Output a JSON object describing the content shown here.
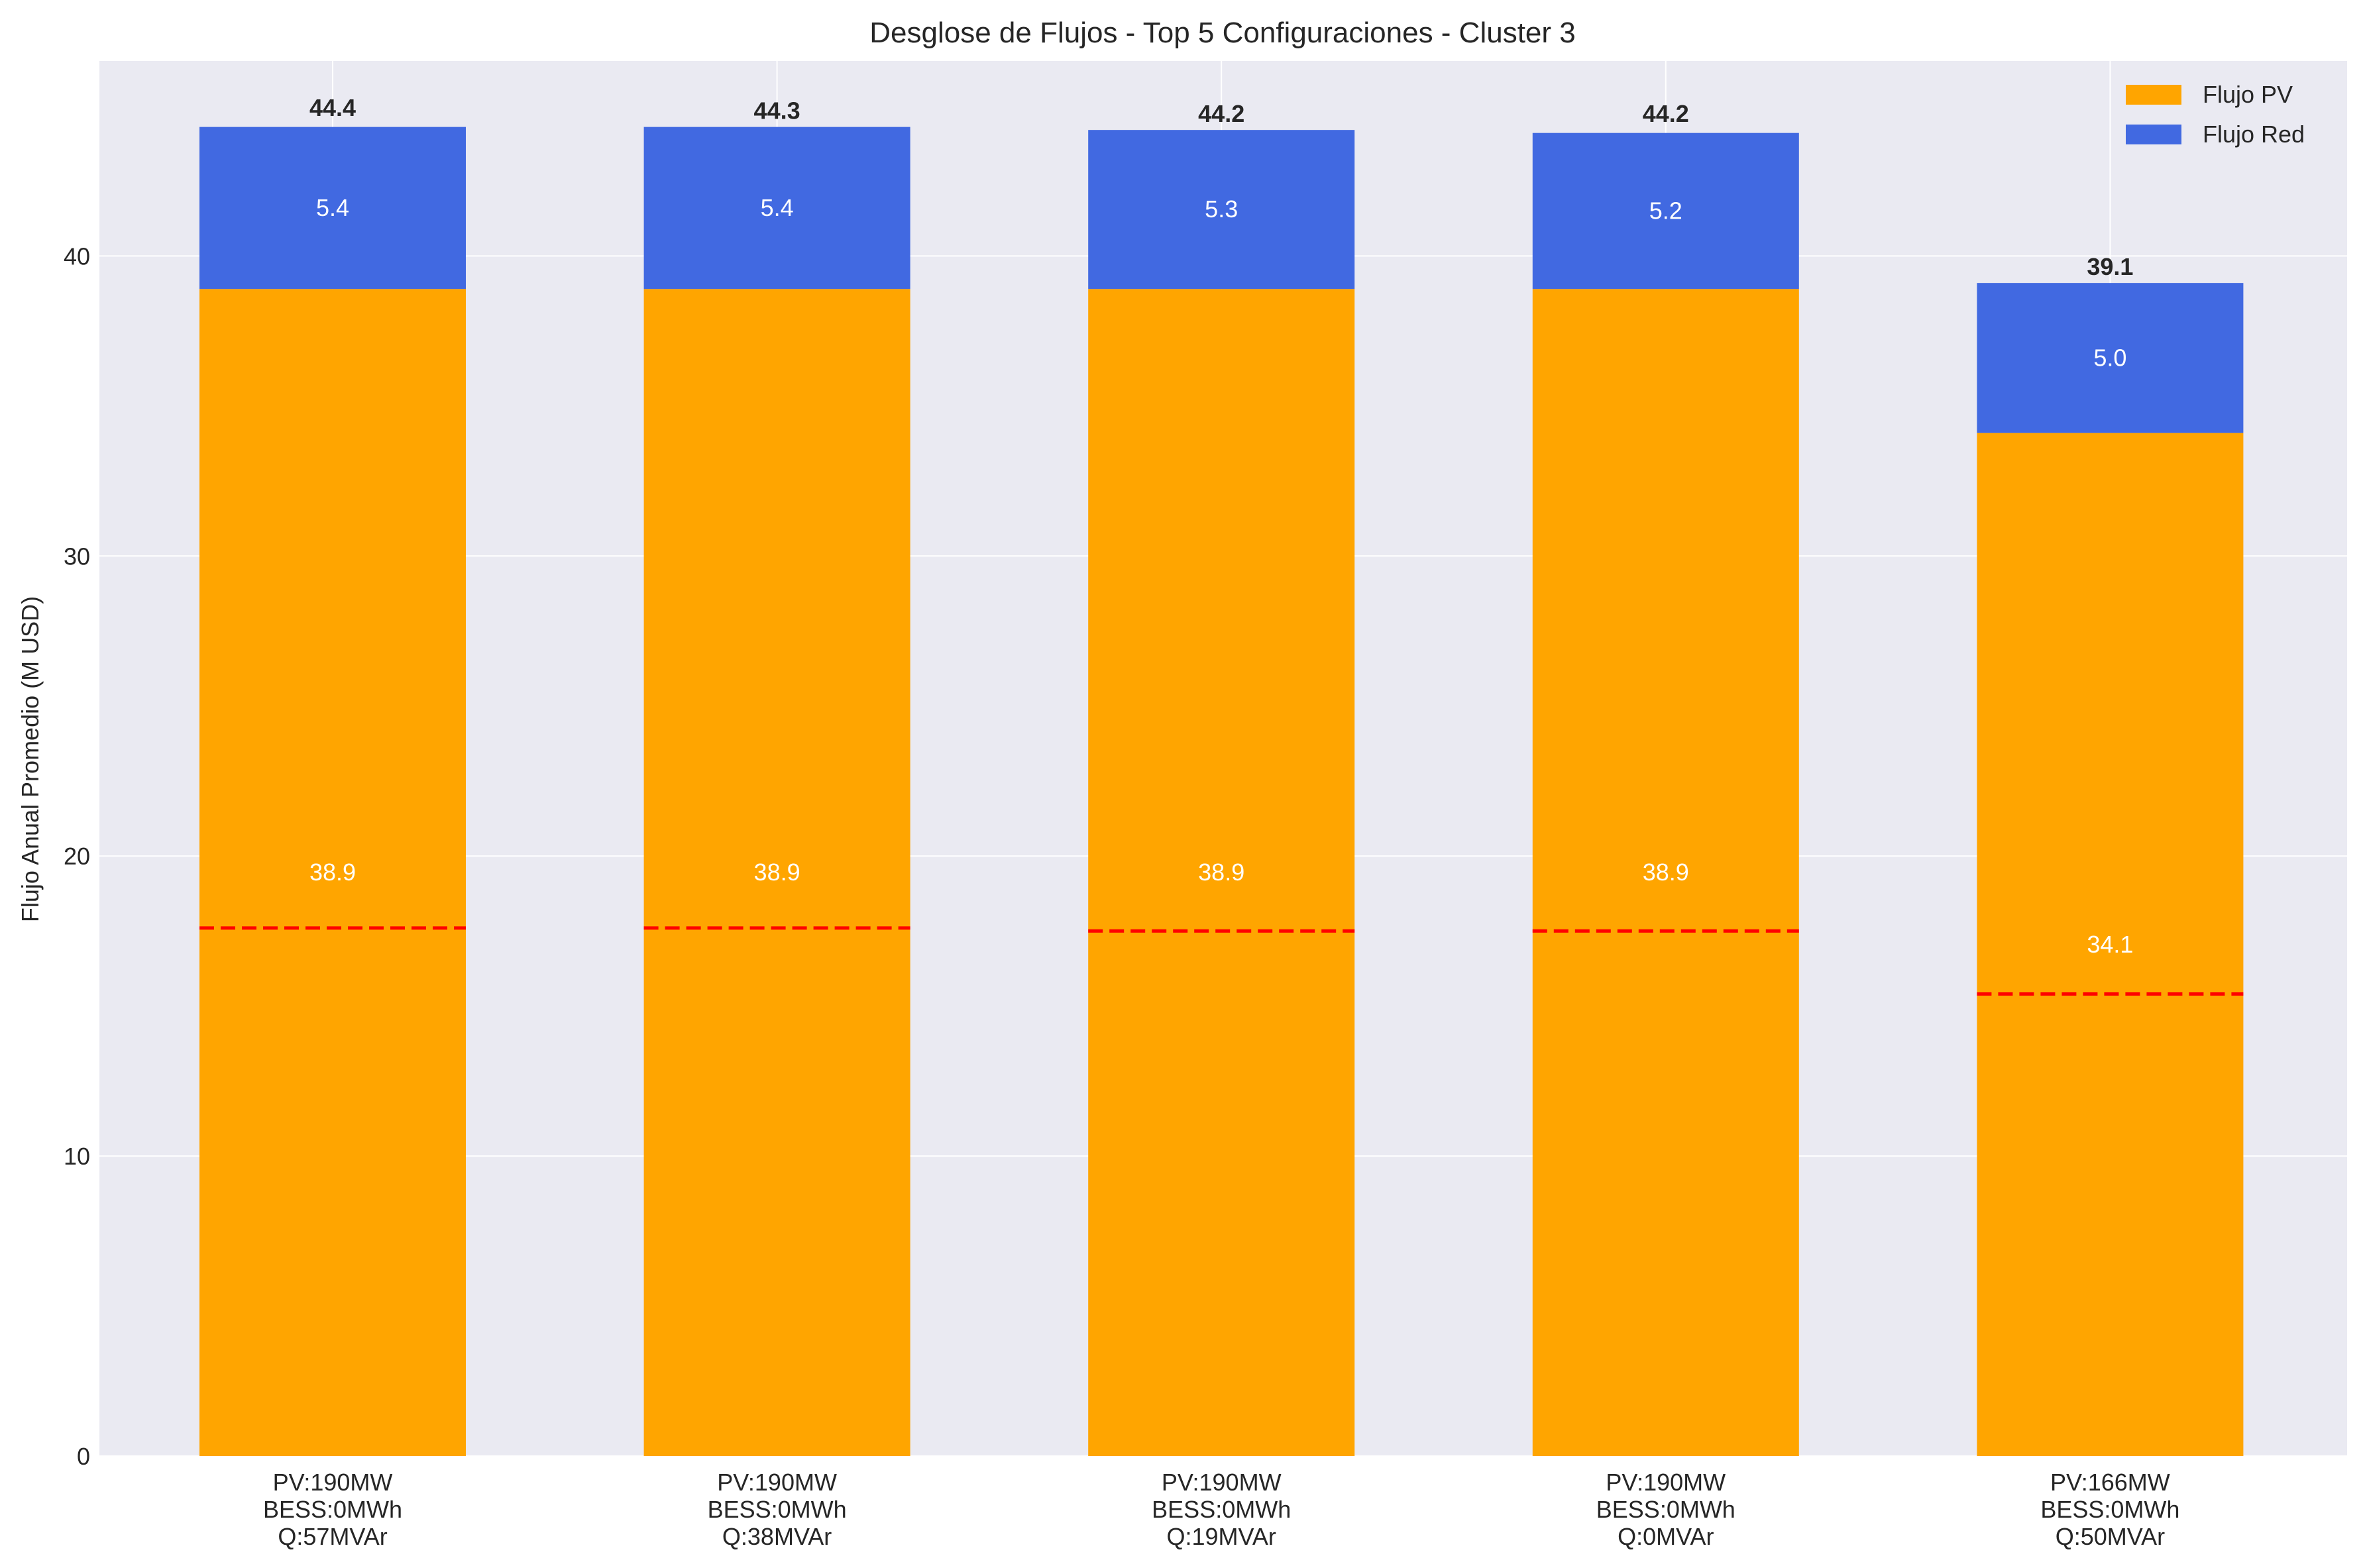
{
  "chart_data": {
    "type": "bar",
    "stacked": true,
    "title": "Desglose de Flujos - Top 5 Configuraciones - Cluster 3",
    "xlabel": "",
    "ylabel": "Flujo Anual Promedio (M USD)",
    "ylim": [
      0,
      46.5
    ],
    "yticks": [
      0,
      10,
      20,
      30,
      40
    ],
    "grid": true,
    "legend_position": "top-right",
    "categories": [
      [
        "PV:190MW",
        "BESS:0MWh",
        "Q:57MVAr"
      ],
      [
        "PV:190MW",
        "BESS:0MWh",
        "Q:38MVAr"
      ],
      [
        "PV:190MW",
        "BESS:0MWh",
        "Q:19MVAr"
      ],
      [
        "PV:190MW",
        "BESS:0MWh",
        "Q:0MVAr"
      ],
      [
        "PV:166MW",
        "BESS:0MWh",
        "Q:50MVAr"
      ]
    ],
    "series": [
      {
        "name": "Flujo PV",
        "color": "#FFA500",
        "values": [
          38.9,
          38.9,
          38.9,
          38.9,
          34.1
        ]
      },
      {
        "name": "Flujo Red",
        "color": "#4169E1",
        "values": [
          5.4,
          5.4,
          5.3,
          5.2,
          5.0
        ]
      }
    ],
    "totals": [
      44.4,
      44.3,
      44.2,
      44.2,
      39.1
    ],
    "reference_lines": {
      "color": "#FF0000",
      "style": "dashed",
      "values": [
        17.6,
        17.6,
        17.5,
        17.5,
        15.4
      ]
    }
  }
}
